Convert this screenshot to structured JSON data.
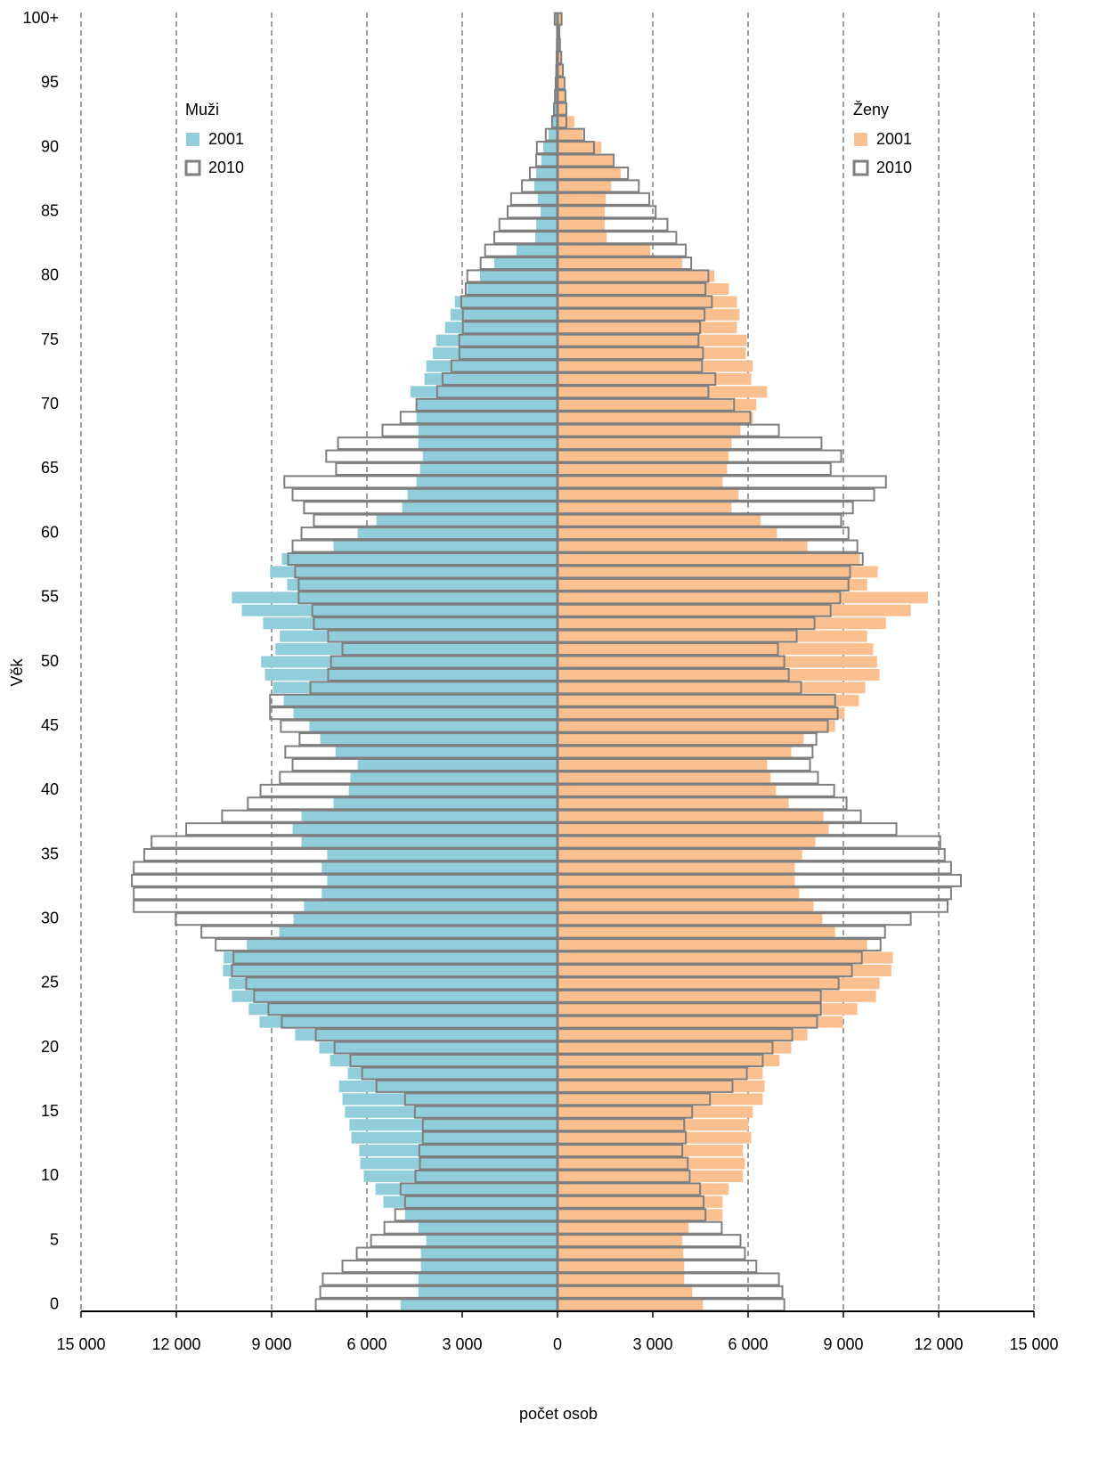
{
  "chart_data": {
    "type": "pyramid",
    "x_label": "počet osob",
    "y_label": "Věk",
    "xlim": [
      -15000,
      15000
    ],
    "xticks": [
      {
        "value": -15000,
        "label": "15 000"
      },
      {
        "value": -12000,
        "label": "12 000"
      },
      {
        "value": -9000,
        "label": "9 000"
      },
      {
        "value": -6000,
        "label": "6 000"
      },
      {
        "value": -3000,
        "label": "3 000"
      },
      0,
      {
        "value": 3000,
        "label": "3 000"
      },
      {
        "value": 6000,
        "label": "6 000"
      },
      {
        "value": 9000,
        "label": "9 000"
      },
      {
        "value": 12000,
        "label": "12 000"
      },
      {
        "value": 15000,
        "label": "15 000"
      }
    ],
    "ylim": [
      -0.5,
      100.5
    ],
    "yticks": [
      0,
      5,
      10,
      15,
      20,
      25,
      30,
      35,
      40,
      45,
      50,
      55,
      60,
      65,
      70,
      75,
      80,
      85,
      90,
      95,
      {
        "value": 100,
        "label": "100+"
      }
    ],
    "grid": true,
    "x": [
      0,
      1,
      2,
      3,
      4,
      5,
      6,
      7,
      8,
      9,
      10,
      11,
      12,
      13,
      14,
      15,
      16,
      17,
      18,
      19,
      20,
      21,
      22,
      23,
      24,
      25,
      26,
      27,
      28,
      29,
      30,
      31,
      32,
      33,
      34,
      35,
      36,
      37,
      38,
      39,
      40,
      41,
      42,
      43,
      44,
      45,
      46,
      47,
      48,
      49,
      50,
      51,
      52,
      53,
      54,
      55,
      56,
      57,
      58,
      59,
      60,
      61,
      62,
      63,
      64,
      65,
      66,
      67,
      68,
      69,
      70,
      71,
      72,
      73,
      74,
      75,
      76,
      77,
      78,
      79,
      80,
      81,
      82,
      83,
      84,
      85,
      86,
      87,
      88,
      89,
      90,
      91,
      92,
      93,
      94,
      95,
      96,
      97,
      98,
      99,
      100
    ],
    "sides": [
      {
        "title": "Muži",
        "direction": "left",
        "series": [
          {
            "name": "2001",
            "style": "fill",
            "color": "#92cddc",
            "values": [
              4940,
              4380,
              4380,
              4300,
              4300,
              4130,
              4380,
              4800,
              5480,
              5730,
              6100,
              6210,
              6240,
              6490,
              6550,
              6690,
              6770,
              6880,
              6600,
              7160,
              7500,
              8260,
              9380,
              9720,
              10250,
              10340,
              10530,
              10510,
              9780,
              8760,
              8310,
              7980,
              7420,
              7250,
              7420,
              7250,
              8060,
              8340,
              8060,
              7050,
              6570,
              6520,
              6290,
              6990,
              7470,
              7810,
              8310,
              8620,
              8960,
              9210,
              9330,
              8880,
              8740,
              9270,
              9940,
              10250,
              8510,
              9050,
              8680,
              7050,
              6290,
              5700,
              4890,
              4720,
              4440,
              4330,
              4240,
              4380,
              4380,
              4440,
              4440,
              4630,
              4190,
              4130,
              3930,
              3820,
              3540,
              3370,
              3230,
              2840,
              2440,
              1990,
              1290,
              700,
              670,
              530,
              620,
              730,
              670,
              510,
              450,
              280,
              200,
              140,
              80,
              50,
              40,
              30,
              20,
              10,
              80
            ]
          },
          {
            "name": "2010",
            "style": "outline",
            "color": "#7f7f7f",
            "values": [
              7610,
              7470,
              7390,
              6770,
              6320,
              5870,
              5450,
              5110,
              4800,
              4940,
              4470,
              4330,
              4350,
              4240,
              4240,
              4490,
              4800,
              5700,
              6150,
              6520,
              7020,
              7610,
              8680,
              9100,
              9550,
              9800,
              10250,
              10200,
              10760,
              11210,
              12020,
              13340,
              13340,
              13400,
              13340,
              13010,
              12780,
              11690,
              10560,
              9750,
              9350,
              8740,
              8340,
              8570,
              8120,
              8710,
              9050,
              9050,
              7780,
              7220,
              7130,
              6770,
              7220,
              7670,
              7720,
              8150,
              8150,
              8260,
              8480,
              8340,
              8060,
              7670,
              7980,
              8340,
              8600,
              6970,
              7280,
              6910,
              5510,
              4940,
              4440,
              3790,
              3620,
              3340,
              3090,
              3090,
              2980,
              2980,
              3030,
              2890,
              2840,
              2420,
              2280,
              1990,
              1830,
              1570,
              1460,
              1120,
              870,
              670,
              650,
              370,
              170,
              110,
              80,
              60,
              40,
              30,
              20,
              15,
              90
            ]
          }
        ]
      },
      {
        "title": "Ženy",
        "direction": "right",
        "series": [
          {
            "name": "2001",
            "style": "fill",
            "color": "#fac090",
            "values": [
              4580,
              4240,
              3990,
              3990,
              3960,
              3930,
              4130,
              5200,
              5200,
              5390,
              5840,
              5900,
              5840,
              6100,
              6010,
              6150,
              6460,
              6520,
              6460,
              6990,
              7360,
              7870,
              8990,
              9440,
              10030,
              10140,
              10510,
              10560,
              9750,
              8740,
              8340,
              8060,
              7610,
              7470,
              7470,
              7700,
              8120,
              8540,
              8370,
              7280,
              6880,
              6710,
              6600,
              7360,
              7750,
              8740,
              9040,
              9490,
              9690,
              10140,
              10060,
              9940,
              9750,
              10340,
              11120,
              11660,
              9750,
              10080,
              9520,
              7870,
              6910,
              6400,
              5480,
              5700,
              5200,
              5340,
              5390,
              5480,
              5760,
              6150,
              6260,
              6600,
              6100,
              6150,
              5930,
              5960,
              5650,
              5730,
              5650,
              5390,
              4940,
              3930,
              2920,
              1550,
              1490,
              1490,
              1520,
              1690,
              1990,
              1740,
              1380,
              800,
              530,
              310,
              250,
              200,
              150,
              100,
              70,
              50,
              120
            ]
          },
          {
            "name": "2010",
            "style": "outline",
            "color": "#7f7f7f",
            "values": [
              7140,
              7080,
              6970,
              6260,
              5900,
              5760,
              5170,
              4660,
              4600,
              4490,
              4160,
              4100,
              3930,
              4040,
              3990,
              4240,
              4800,
              5510,
              5960,
              6460,
              6770,
              7390,
              8170,
              8290,
              8290,
              8850,
              9270,
              9580,
              10170,
              10310,
              11120,
              12280,
              12390,
              12700,
              12390,
              12190,
              12050,
              10670,
              9550,
              9100,
              8710,
              8200,
              7950,
              8030,
              8150,
              8510,
              8820,
              8740,
              7670,
              7280,
              7140,
              6940,
              7530,
              8090,
              8600,
              8900,
              9160,
              9210,
              9610,
              9440,
              9160,
              8930,
              9300,
              9970,
              10340,
              8600,
              8930,
              8310,
              6970,
              6070,
              5560,
              4750,
              4970,
              4550,
              4580,
              4440,
              4490,
              4630,
              4860,
              4660,
              4750,
              4210,
              4040,
              3740,
              3460,
              3090,
              2890,
              2560,
              2220,
              1770,
              1150,
              840,
              280,
              280,
              250,
              220,
              170,
              120,
              80,
              60,
              130
            ]
          }
        ]
      }
    ]
  }
}
